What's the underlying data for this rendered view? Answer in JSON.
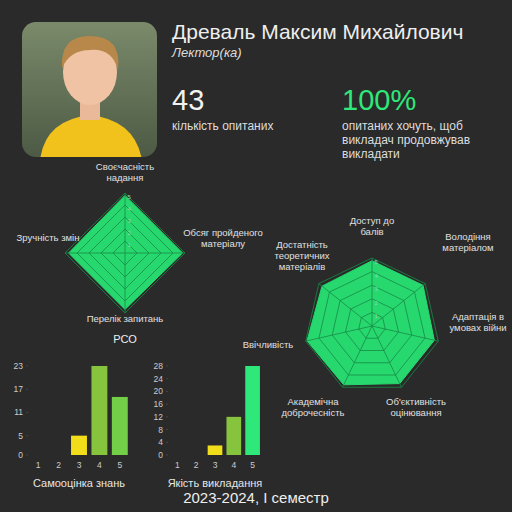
{
  "header": {
    "name": "Древаль Максим Михайлович",
    "role": "Лектор(ка)"
  },
  "stats": [
    {
      "value": 43,
      "label": "кількість опитаних"
    },
    {
      "value": "100%",
      "label": "опитаних хочуть, щоб викладач продовжував викладати"
    }
  ],
  "chart_data": [
    {
      "type": "radar",
      "title": "РСО",
      "categories": [
        "Своєчасність надання",
        "Обсяг пройденого матеріалу",
        "Перелік запитань",
        "Зручність змін"
      ],
      "values": [
        4.8,
        4.8,
        4.7,
        4.7
      ],
      "rlim": [
        0,
        5
      ],
      "rticks": [
        1,
        2,
        3,
        4,
        5
      ],
      "color": "#27d86f"
    },
    {
      "type": "radar",
      "categories": [
        "Доступ до балів",
        "Володіння матеріалом",
        "Адаптація в умовах війни",
        "Об'єктивність оцінювання",
        "Академічна доброчесність",
        "Ввічливість",
        "Достатність теоретичних матеріалів"
      ],
      "values": [
        4.8,
        4.8,
        4.7,
        4.7,
        4.8,
        4.9,
        4.7
      ],
      "rlim": [
        0,
        5
      ],
      "rticks": [
        1,
        2,
        3,
        4,
        5
      ],
      "color": "#27d86f"
    },
    {
      "type": "bar",
      "title": "Самооцінка знань",
      "categories": [
        "1",
        "2",
        "3",
        "4",
        "5"
      ],
      "values": [
        0,
        0,
        5,
        23,
        15
      ],
      "ylim": [
        0,
        23
      ],
      "yticks": [
        0,
        5,
        11,
        17,
        23
      ],
      "colors": [
        "#e53935",
        "#ff9800",
        "#f2dd1a",
        "#86c43d",
        "#74cf48"
      ]
    },
    {
      "type": "bar",
      "title": "Якість викладання",
      "categories": [
        "1",
        "2",
        "3",
        "4",
        "5"
      ],
      "values": [
        0,
        0,
        3,
        12,
        28
      ],
      "ylim": [
        0,
        28
      ],
      "yticks": [
        0,
        4,
        8,
        12,
        16,
        20,
        24,
        28
      ],
      "colors": [
        "#e53935",
        "#ff9800",
        "#f2dd1a",
        "#86c43d",
        "#2ee87a"
      ]
    }
  ],
  "footer": "2023-2024, I семестр"
}
